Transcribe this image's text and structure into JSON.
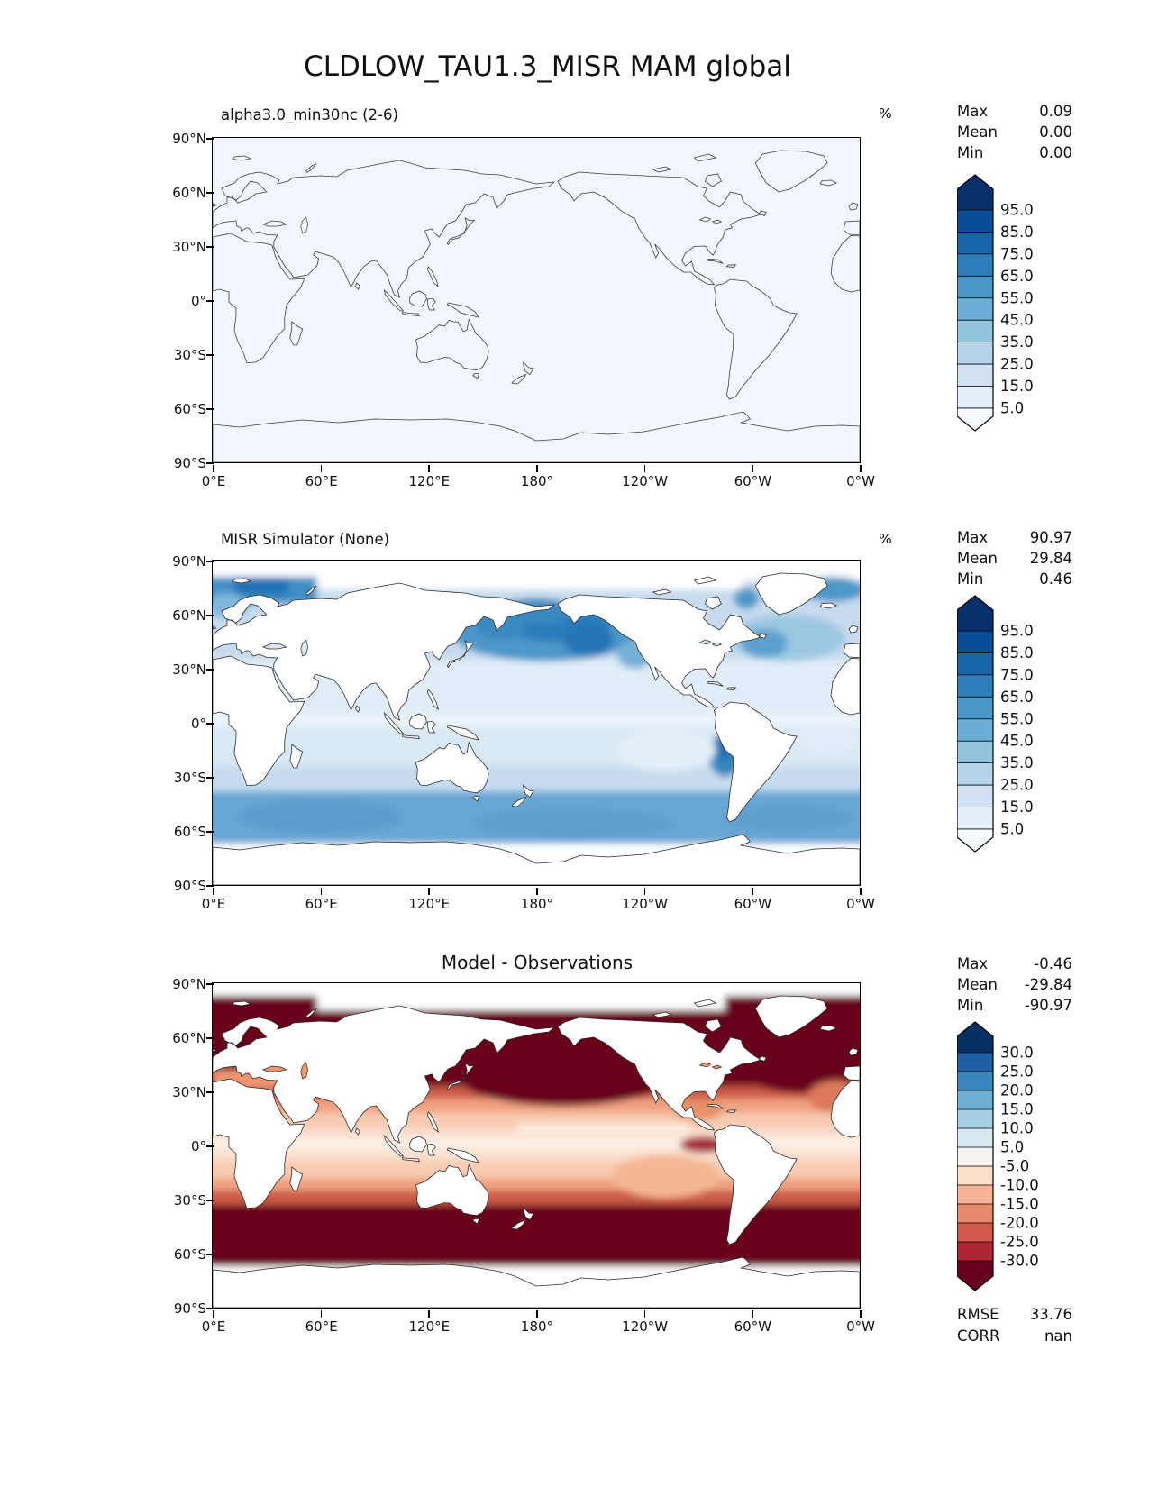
{
  "figure_title": "CLDLOW_TAU1.3_MISR MAM global",
  "axes": {
    "lat_labels": [
      "90°N",
      "60°N",
      "30°N",
      "0°",
      "30°S",
      "60°S",
      "90°S"
    ],
    "lon_labels": [
      "0°E",
      "60°E",
      "120°E",
      "180°",
      "120°W",
      "60°W",
      "0°W"
    ]
  },
  "panels": [
    {
      "title": "alpha3.0_min30nc (2-6)",
      "units": "%",
      "stats": [
        {
          "label": "Max",
          "value": "0.09"
        },
        {
          "label": "Mean",
          "value": "0.00"
        },
        {
          "label": "Min",
          "value": "0.00"
        }
      ],
      "colorbar": {
        "labels": [
          "95.0",
          "85.0",
          "75.0",
          "65.0",
          "55.0",
          "45.0",
          "35.0",
          "25.0",
          "15.0",
          "5.0"
        ],
        "colors": [
          "#08306b",
          "#084d97",
          "#1764ab",
          "#2e7ebc",
          "#4a98c9",
          "#6aadd5",
          "#93c4de",
          "#b5d4e9",
          "#cfe1f2",
          "#e3eef9",
          "#f7fbff"
        ]
      }
    },
    {
      "title": "MISR Simulator (None)",
      "units": "%",
      "stats": [
        {
          "label": "Max",
          "value": "90.97"
        },
        {
          "label": "Mean",
          "value": "29.84"
        },
        {
          "label": "Min",
          "value": "0.46"
        }
      ],
      "colorbar": {
        "labels": [
          "95.0",
          "85.0",
          "75.0",
          "65.0",
          "55.0",
          "45.0",
          "35.0",
          "25.0",
          "15.0",
          "5.0"
        ],
        "colors": [
          "#08306b",
          "#084d97",
          "#1764ab",
          "#2e7ebc",
          "#4a98c9",
          "#6aadd5",
          "#93c4de",
          "#b5d4e9",
          "#cfe1f2",
          "#e3eef9",
          "#f7fbff"
        ]
      }
    },
    {
      "title": "Model - Observations",
      "units": "",
      "stats": [
        {
          "label": "Max",
          "value": "-0.46"
        },
        {
          "label": "Mean",
          "value": "-29.84"
        },
        {
          "label": "Min",
          "value": "-90.97"
        }
      ],
      "colorbar": {
        "labels": [
          "30.0",
          "25.0",
          "20.0",
          "15.0",
          "10.0",
          "5.0",
          "-5.0",
          "-10.0",
          "-15.0",
          "-20.0",
          "-25.0",
          "-30.0"
        ],
        "colors": [
          "#053061",
          "#1f5fa2",
          "#3a87bd",
          "#6faed3",
          "#a7cfe4",
          "#d8e8f1",
          "#f5f2ef",
          "#fbdfca",
          "#f5b495",
          "#e8886c",
          "#d25849",
          "#b02533",
          "#67001f"
        ]
      },
      "metrics": [
        {
          "label": "RMSE",
          "value": "33.76"
        },
        {
          "label": "CORR",
          "value": "nan"
        }
      ]
    }
  ],
  "chart_data": {
    "type": "heatmap",
    "variable": "CLDLOW_TAU1.3_MISR",
    "season": "MAM",
    "region": "global",
    "units": "%",
    "projection": "equirectangular, lon 0°E to 0°W (0–360°E), lat 90°N to 90°S",
    "lat_ticks": [
      90,
      60,
      30,
      0,
      -30,
      -60,
      -90
    ],
    "lon_ticks": [
      0,
      60,
      120,
      180,
      240,
      300,
      360
    ],
    "panels": [
      {
        "title": "alpha3.0_min30nc (2-6)",
        "role": "model (test run)",
        "colormap": "Blues",
        "contour_levels": [
          5,
          15,
          25,
          35,
          45,
          55,
          65,
          75,
          85,
          95
        ],
        "stats": {
          "max": 0.09,
          "mean": 0.0,
          "min": 0.0
        },
        "field_summary": "Low-topped cloud fraction essentially zero everywhere; entire map in lowest bin (<5%), uniform near-white blue with coastlines only."
      },
      {
        "title": "MISR Simulator (None)",
        "role": "reference / observations",
        "colormap": "Blues",
        "contour_levels": [
          5,
          15,
          25,
          35,
          45,
          55,
          65,
          75,
          85,
          95
        ],
        "stats": {
          "max": 90.97,
          "mean": 29.84,
          "min": 0.46
        },
        "field_summary": "Ocean-only MISR low-cloud fraction: 45-75% over North Pacific, Bering/Okhotsk Seas, Barents/Norwegian Seas, Peru stratocumulus region and the 40-65S Southern Ocean band; 5-25% in tropics and subtropical gyres; land and polar caps masked white."
      },
      {
        "title": "Model - Observations",
        "role": "difference",
        "colormap": "RdBu",
        "contour_levels": [
          -30,
          -25,
          -20,
          -15,
          -10,
          -5,
          5,
          10,
          15,
          20,
          25,
          30
        ],
        "stats": {
          "max": -0.46,
          "mean": -29.84,
          "min": -90.97
        },
        "metrics": {
          "rmse": 33.76,
          "corr": "nan"
        },
        "field_summary": "Negative bias everywhere: below -30% (dark maroon) over mid- and high-latitude oceans, -5 to -15% (pale salmon) along the tropics with a near-zero strip at the equator; land masked white."
      }
    ]
  }
}
